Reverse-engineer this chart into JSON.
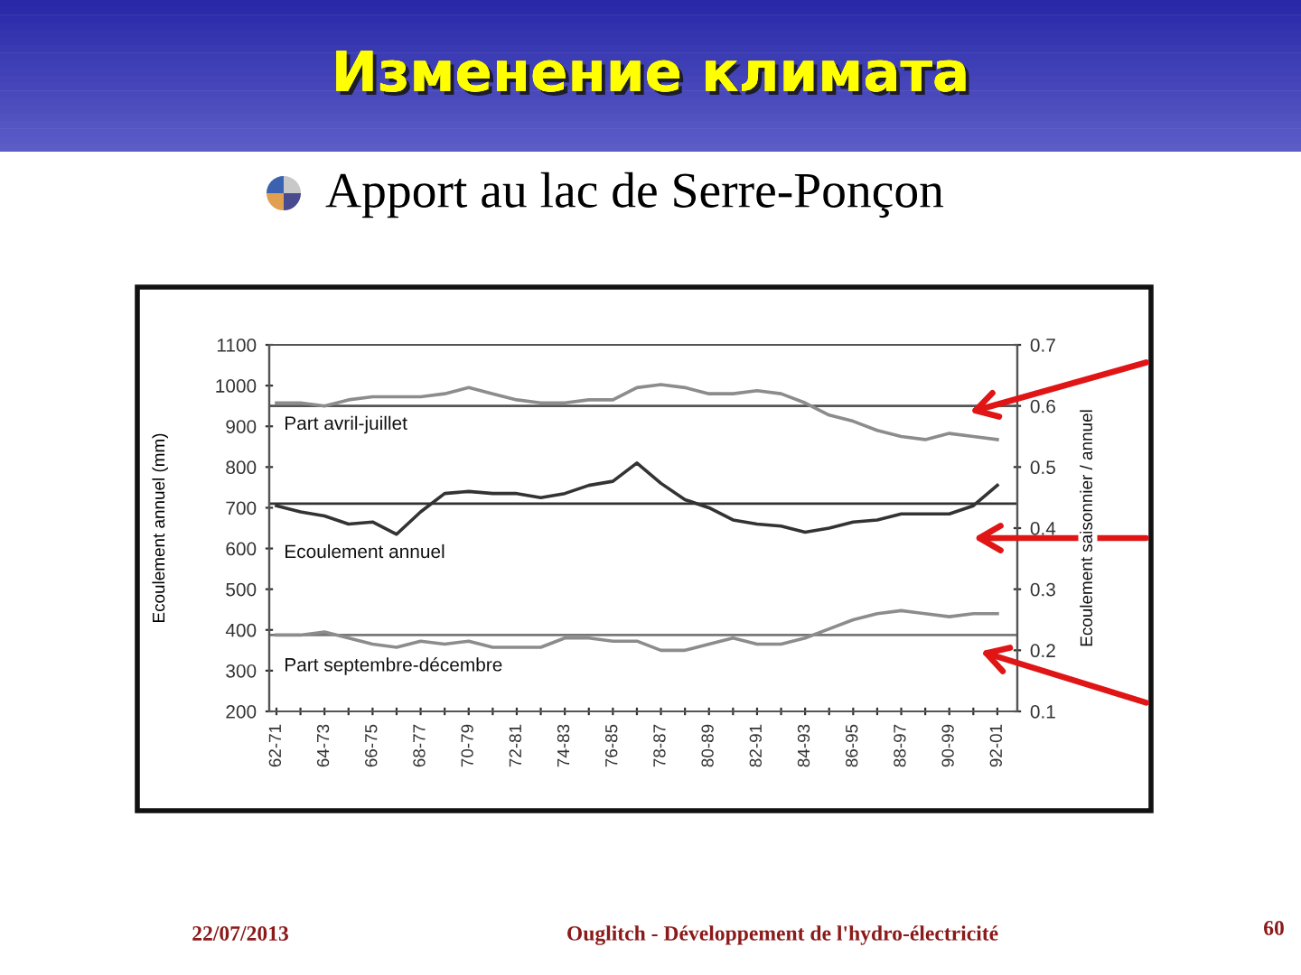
{
  "chart_data": {
    "type": "line",
    "title": "Изменение климата",
    "subtitle": "Apport au lac de Serre-Ponçon",
    "ylabel": "Ecoulement annuel (mm)",
    "y2label": "Ecoulement saisonnier / annuel",
    "categories": [
      "62-71",
      null,
      "64-73",
      null,
      "66-75",
      null,
      "68-77",
      null,
      "70-79",
      null,
      "72-81",
      null,
      "74-83",
      null,
      "76-85",
      null,
      "78-87",
      null,
      "80-89",
      null,
      "82-91",
      null,
      "84-93",
      null,
      "86-95",
      null,
      "88-97",
      null,
      "90-99",
      null,
      "92-01"
    ],
    "series": [
      {
        "name": "Part avril-juillet",
        "color": "#8c8c8c",
        "axis": "y2",
        "values": [
          0.605,
          0.605,
          0.6,
          0.61,
          0.615,
          0.615,
          0.615,
          0.62,
          0.63,
          0.62,
          0.61,
          0.605,
          0.605,
          0.61,
          0.61,
          0.63,
          0.635,
          0.63,
          0.62,
          0.62,
          0.625,
          0.62,
          0.605,
          0.585,
          0.575,
          0.56,
          0.55,
          0.545,
          0.555,
          0.55,
          0.545
        ]
      },
      {
        "name": "Ecoulement annuel",
        "color": "#333333",
        "axis": "y",
        "values": [
          705,
          690,
          680,
          660,
          665,
          635,
          690,
          735,
          740,
          735,
          735,
          725,
          735,
          755,
          765,
          810,
          760,
          720,
          700,
          670,
          660,
          655,
          640,
          650,
          665,
          670,
          685,
          685,
          685,
          705,
          755
        ]
      },
      {
        "name": "Part septembre-décembre",
        "color": "#8c8c8c",
        "axis": "y2",
        "values": [
          0.225,
          0.225,
          0.23,
          0.22,
          0.21,
          0.205,
          0.215,
          0.21,
          0.215,
          0.205,
          0.205,
          0.205,
          0.22,
          0.22,
          0.215,
          0.215,
          0.2,
          0.2,
          0.21,
          0.22,
          0.21,
          0.21,
          0.22,
          0.235,
          0.25,
          0.26,
          0.265,
          0.26,
          0.255,
          0.26,
          0.26
        ]
      }
    ],
    "ylim": [
      200,
      1100
    ],
    "yticks": [
      200,
      300,
      400,
      500,
      600,
      700,
      800,
      900,
      1000,
      1100
    ],
    "y2lim": [
      0.1,
      0.7
    ],
    "y2ticks": [
      0.1,
      0.2,
      0.3,
      0.4,
      0.5,
      0.6,
      0.7
    ],
    "ref_lines": [
      {
        "axis": "y2",
        "value": 0.6,
        "color": "#555555",
        "line_style": "solid"
      },
      {
        "axis": "y",
        "value": 710,
        "color": "#333333",
        "line_style": "solid"
      },
      {
        "axis": "y2",
        "value": 0.225,
        "color": "#777777",
        "line_style": "solid"
      }
    ],
    "annotations": [
      "22/07/2013",
      "Ouglitch - Développement de l'hydro-électricité",
      "60"
    ],
    "line_style": "solid",
    "grid": false,
    "legend": false
  }
}
